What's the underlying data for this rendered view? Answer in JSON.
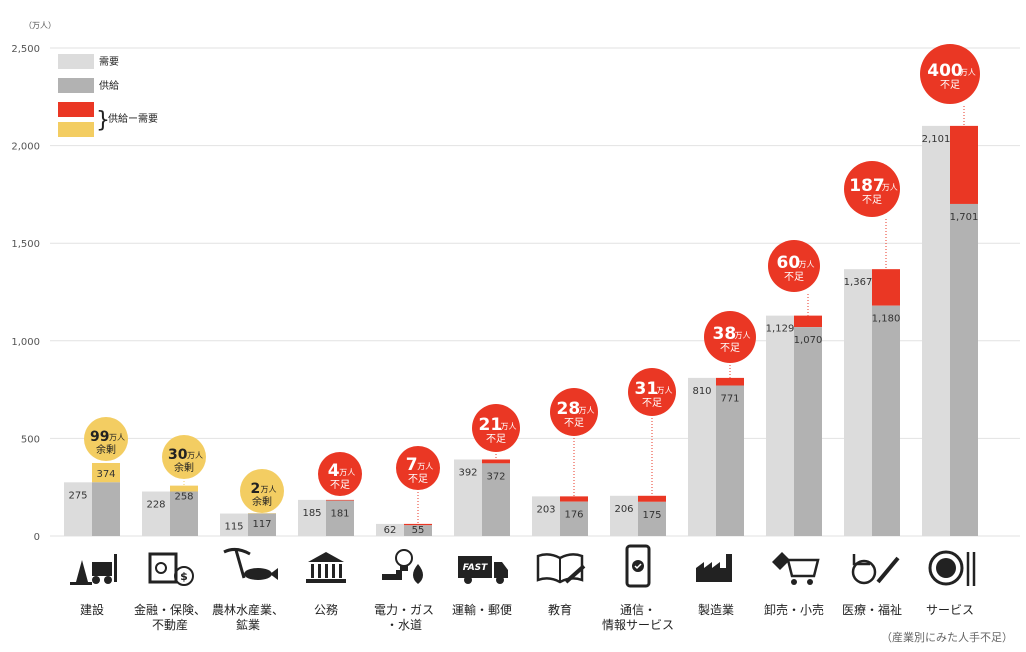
{
  "chart_data": {
    "type": "bar",
    "ylabel": "（万人）",
    "ylim": [
      0,
      2500
    ],
    "yticks": [
      "0",
      "500",
      "1,000",
      "1,500",
      "2,000",
      "2,500"
    ],
    "grid": true,
    "legend": {
      "position": "top-left",
      "items": [
        "需要",
        "供給"
      ],
      "diff_label": "供給ー需要",
      "bracket": "}"
    },
    "colors": {
      "demand": "#dcdcdc",
      "supply": "#b2b2b2",
      "shortage": "#ea3724",
      "surplus": "#f3cd62",
      "grid": "#e2e2e2"
    },
    "categories": [
      "建設",
      "金融・保険、不動産",
      "農林水産業、鉱業",
      "公務",
      "電力・ガス・水道",
      "運輸・郵便",
      "教育",
      "通信・情報サービス",
      "製造業",
      "卸売・小売",
      "医療・福祉",
      "サービス"
    ],
    "category_lines": [
      [
        "建設"
      ],
      [
        "金融・保険、",
        "不動産"
      ],
      [
        "農林水産業、",
        "鉱業"
      ],
      [
        "公務"
      ],
      [
        "電力・ガス",
        "・水道"
      ],
      [
        "運輸・郵便"
      ],
      [
        "教育"
      ],
      [
        "通信・",
        "情報サービス"
      ],
      [
        "製造業"
      ],
      [
        "卸売・小売"
      ],
      [
        "医療・福祉"
      ],
      [
        "サービス"
      ]
    ],
    "icons": [
      "construction-icon",
      "finance-safe-icon",
      "fishing-pickaxe-icon",
      "government-building-icon",
      "utility-lightbulb-flame-icon",
      "delivery-truck-icon",
      "book-pencil-icon",
      "smartphone-icon",
      "factory-icon",
      "shopping-cart-icon",
      "wheelchair-syringe-icon",
      "dining-plate-icon"
    ],
    "series": [
      {
        "name": "需要",
        "values": [
          275,
          228,
          115,
          185,
          62,
          392,
          203,
          206,
          810,
          1129,
          1367,
          2101
        ]
      },
      {
        "name": "供給",
        "values": [
          374,
          258,
          117,
          181,
          55,
          372,
          176,
          175,
          771,
          1070,
          1180,
          1701
        ]
      }
    ],
    "demand_labels": [
      "275",
      "228",
      "115",
      "185",
      "62",
      "392",
      "203",
      "206",
      "810",
      "1,129",
      "1,367",
      "2,101"
    ],
    "supply_labels": [
      "374",
      "258",
      "117",
      "181",
      "55",
      "372",
      "176",
      "175",
      "771",
      "1,070",
      "1,180",
      "1,701"
    ],
    "gap_numbers": [
      "99",
      "30",
      "2",
      "4",
      "7",
      "21",
      "28",
      "31",
      "38",
      "60",
      "187",
      "400"
    ],
    "gap_unit": "万人",
    "shortage_word": "不足",
    "surplus_word": "余剰",
    "footnote": "（産業別にみた人手不足）"
  }
}
